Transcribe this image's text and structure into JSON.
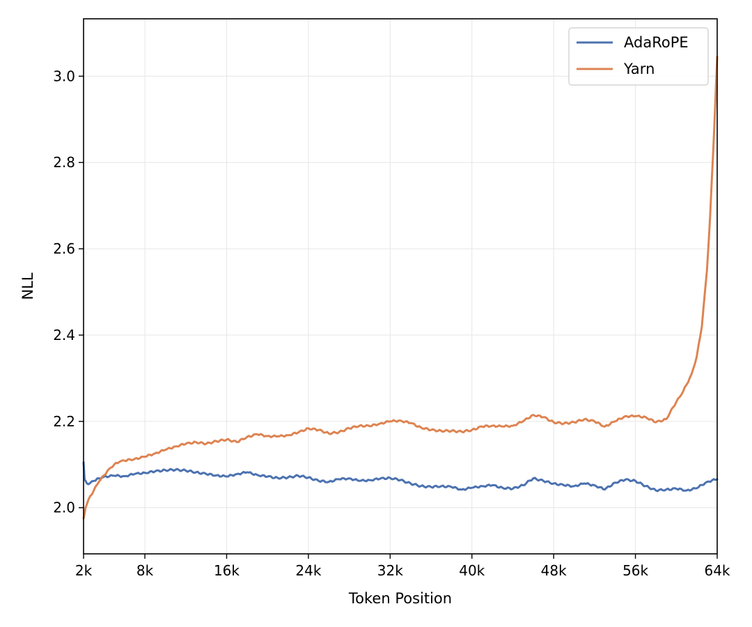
{
  "chart_data": {
    "type": "line",
    "title": "",
    "xlabel": "Token Position",
    "ylabel": "NLL",
    "xlim": [
      2,
      64
    ],
    "ylim": [
      1.893,
      3.133
    ],
    "x_ticks": [
      2,
      8,
      16,
      24,
      32,
      40,
      48,
      56,
      64
    ],
    "x_tick_labels": [
      "2k",
      "8k",
      "16k",
      "24k",
      "32k",
      "40k",
      "48k",
      "56k",
      "64k"
    ],
    "y_ticks": [
      2.0,
      2.2,
      2.4,
      2.6,
      2.8,
      3.0
    ],
    "y_tick_labels": [
      "2.0",
      "2.2",
      "2.4",
      "2.6",
      "2.8",
      "3.0"
    ],
    "grid": true,
    "legend_position": "top-right",
    "series": [
      {
        "name": "AdaRoPE",
        "color": "#4c72b0",
        "x": [
          2,
          2.1,
          2.3,
          2.6,
          3,
          3.5,
          4,
          5,
          6,
          7,
          8,
          9,
          10,
          11,
          12,
          13,
          14,
          15,
          16,
          17,
          18,
          19,
          20,
          21,
          22,
          23,
          24,
          25,
          26,
          27,
          28,
          29,
          30,
          31,
          32,
          33,
          34,
          35,
          36,
          37,
          38,
          39,
          40,
          41,
          42,
          43,
          44,
          45,
          46,
          47,
          48,
          49,
          50,
          51,
          52,
          53,
          54,
          55,
          56,
          57,
          58,
          59,
          60,
          61,
          62,
          63,
          64
        ],
        "y": [
          2.105,
          2.065,
          2.057,
          2.056,
          2.062,
          2.068,
          2.072,
          2.074,
          2.073,
          2.078,
          2.081,
          2.084,
          2.087,
          2.088,
          2.086,
          2.082,
          2.078,
          2.075,
          2.072,
          2.078,
          2.082,
          2.076,
          2.072,
          2.069,
          2.07,
          2.074,
          2.07,
          2.062,
          2.06,
          2.066,
          2.068,
          2.062,
          2.064,
          2.067,
          2.069,
          2.064,
          2.056,
          2.05,
          2.048,
          2.05,
          2.048,
          2.042,
          2.046,
          2.05,
          2.052,
          2.046,
          2.044,
          2.052,
          2.068,
          2.062,
          2.056,
          2.052,
          2.05,
          2.056,
          2.052,
          2.042,
          2.058,
          2.065,
          2.062,
          2.05,
          2.04,
          2.042,
          2.044,
          2.04,
          2.045,
          2.06,
          2.066
        ]
      },
      {
        "name": "Yarn",
        "color": "#dd8452",
        "x": [
          2,
          2.2,
          2.5,
          3,
          3.5,
          4,
          4.5,
          5,
          5.5,
          6,
          7,
          8,
          9,
          10,
          11,
          12,
          13,
          14,
          15,
          16,
          17,
          18,
          19,
          20,
          21,
          22,
          23,
          24,
          25,
          26,
          27,
          28,
          29,
          30,
          31,
          32,
          33,
          34,
          35,
          36,
          37,
          38,
          39,
          40,
          41,
          42,
          43,
          44,
          45,
          46,
          47,
          48,
          49,
          50,
          51,
          52,
          53,
          54,
          55,
          56,
          57,
          58,
          59,
          60,
          60.5,
          61,
          61.5,
          62,
          62.5,
          63,
          63.3,
          63.6,
          63.8,
          64
        ],
        "y": [
          1.975,
          2.0,
          2.02,
          2.04,
          2.06,
          2.075,
          2.09,
          2.1,
          2.106,
          2.109,
          2.113,
          2.118,
          2.126,
          2.134,
          2.142,
          2.148,
          2.152,
          2.148,
          2.154,
          2.158,
          2.152,
          2.164,
          2.17,
          2.166,
          2.165,
          2.168,
          2.174,
          2.184,
          2.18,
          2.172,
          2.175,
          2.184,
          2.19,
          2.189,
          2.195,
          2.2,
          2.202,
          2.196,
          2.186,
          2.18,
          2.178,
          2.178,
          2.176,
          2.18,
          2.188,
          2.19,
          2.188,
          2.19,
          2.2,
          2.215,
          2.21,
          2.198,
          2.195,
          2.198,
          2.205,
          2.2,
          2.188,
          2.2,
          2.212,
          2.212,
          2.21,
          2.198,
          2.205,
          2.245,
          2.262,
          2.285,
          2.31,
          2.35,
          2.42,
          2.55,
          2.67,
          2.82,
          2.93,
          3.045
        ]
      }
    ]
  }
}
